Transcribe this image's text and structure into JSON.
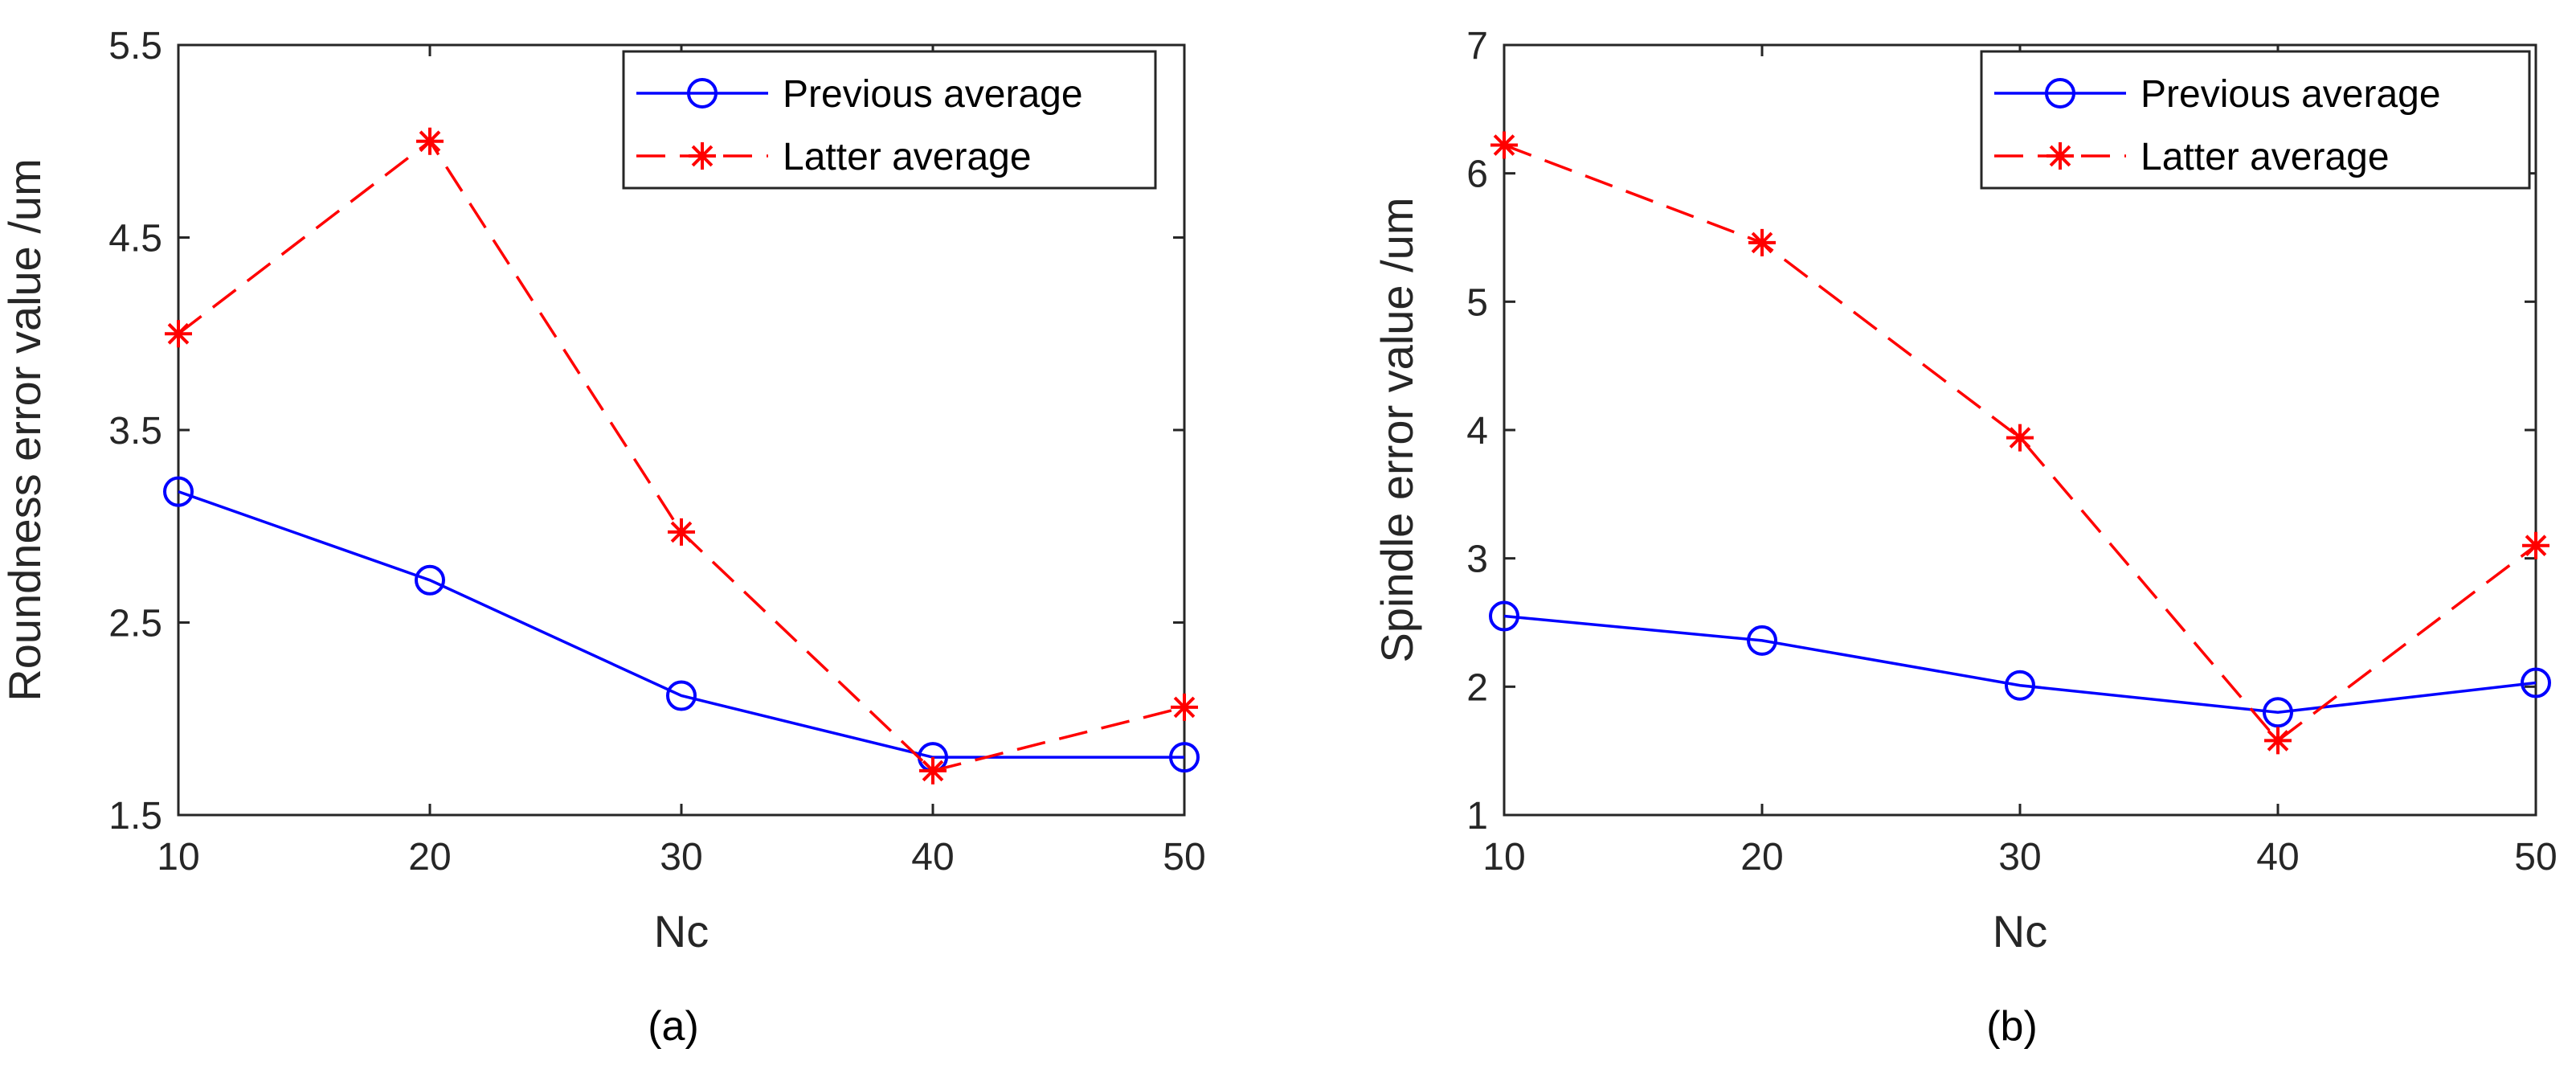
{
  "charts": [
    {
      "type": "line",
      "caption": "(a)",
      "xlabel": "Nc",
      "ylabel": "Roundness error value /um",
      "x": [
        10,
        20,
        30,
        40,
        50
      ],
      "xlim": [
        10,
        50
      ],
      "ylim": [
        1.5,
        5.5
      ],
      "xticks": [
        10,
        20,
        30,
        40,
        50
      ],
      "yticks": [
        1.5,
        2.5,
        3.5,
        4.5,
        5.5
      ],
      "xtick_labels": [
        "10",
        "20",
        "30",
        "40",
        "50"
      ],
      "ytick_labels": [
        "1.5",
        "2.5",
        "3.5",
        "4.5",
        "5.5"
      ],
      "legend": "top-right",
      "series": [
        {
          "name": "Previous average",
          "values": [
            3.18,
            2.72,
            2.12,
            1.8,
            1.8
          ],
          "color": "#0000ff",
          "style": "solid",
          "marker": "circle"
        },
        {
          "name": "Latter average",
          "values": [
            4.0,
            5.0,
            2.97,
            1.73,
            2.06
          ],
          "color": "#ff0000",
          "style": "dashed",
          "marker": "asterisk"
        }
      ]
    },
    {
      "type": "line",
      "caption": "(b)",
      "xlabel": "Nc",
      "ylabel": "Spindle error value /um",
      "x": [
        10,
        20,
        30,
        40,
        50
      ],
      "xlim": [
        10,
        50
      ],
      "ylim": [
        1,
        7
      ],
      "xticks": [
        10,
        20,
        30,
        40,
        50
      ],
      "yticks": [
        1,
        2,
        3,
        4,
        5,
        6,
        7
      ],
      "xtick_labels": [
        "10",
        "20",
        "30",
        "40",
        "50"
      ],
      "ytick_labels": [
        "1",
        "2",
        "3",
        "4",
        "5",
        "6",
        "7"
      ],
      "legend": "top-right",
      "series": [
        {
          "name": "Previous average",
          "values": [
            2.55,
            2.36,
            2.01,
            1.8,
            2.03
          ],
          "color": "#0000ff",
          "style": "solid",
          "marker": "circle"
        },
        {
          "name": "Latter average",
          "values": [
            6.22,
            5.46,
            3.94,
            1.58,
            3.1
          ],
          "color": "#ff0000",
          "style": "dashed",
          "marker": "asterisk"
        }
      ]
    }
  ],
  "chart_data": [
    {
      "type": "line",
      "x": [
        10,
        20,
        30,
        40,
        50
      ],
      "series": [
        {
          "name": "Previous average",
          "values": [
            3.18,
            2.72,
            2.12,
            1.8,
            1.8
          ]
        },
        {
          "name": "Latter average",
          "values": [
            4.0,
            5.0,
            2.97,
            1.73,
            2.06
          ]
        }
      ],
      "title": "",
      "xlabel": "Nc",
      "ylabel": "Roundness error value /um",
      "xlim": [
        10,
        50
      ],
      "ylim": [
        1.5,
        5.5
      ],
      "grid": false,
      "legend": "top-right"
    },
    {
      "type": "line",
      "x": [
        10,
        20,
        30,
        40,
        50
      ],
      "series": [
        {
          "name": "Previous average",
          "values": [
            2.55,
            2.36,
            2.01,
            1.8,
            2.03
          ]
        },
        {
          "name": "Latter average",
          "values": [
            6.22,
            5.46,
            3.94,
            1.58,
            3.1
          ]
        }
      ],
      "title": "",
      "xlabel": "Nc",
      "ylabel": "Spindle error value /um",
      "xlim": [
        10,
        50
      ],
      "ylim": [
        1,
        7
      ],
      "grid": false,
      "legend": "top-right"
    }
  ]
}
